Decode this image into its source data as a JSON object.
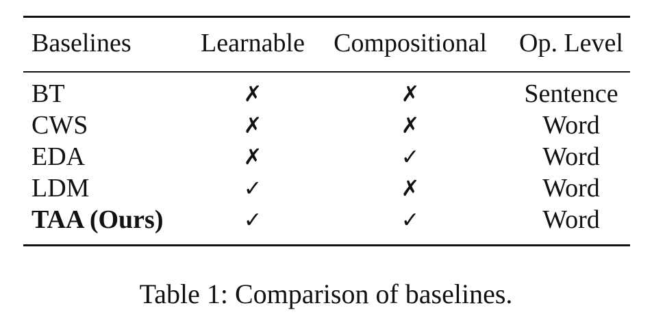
{
  "table": {
    "headers": [
      "Baselines",
      "Learnable",
      "Compositional",
      "Op. Level"
    ],
    "rows": [
      {
        "baseline": "BT",
        "learnable": "✗",
        "compositional": "✗",
        "op_level": "Sentence"
      },
      {
        "baseline": "CWS",
        "learnable": "✗",
        "compositional": "✗",
        "op_level": "Word"
      },
      {
        "baseline": "EDA",
        "learnable": "✗",
        "compositional": "✓",
        "op_level": "Word"
      },
      {
        "baseline": "LDM",
        "learnable": "✓",
        "compositional": "✗",
        "op_level": "Word"
      },
      {
        "baseline": "TAA (Ours)",
        "learnable": "✓",
        "compositional": "✓",
        "op_level": "Word"
      }
    ]
  },
  "caption": "Table 1: Comparison of baselines."
}
